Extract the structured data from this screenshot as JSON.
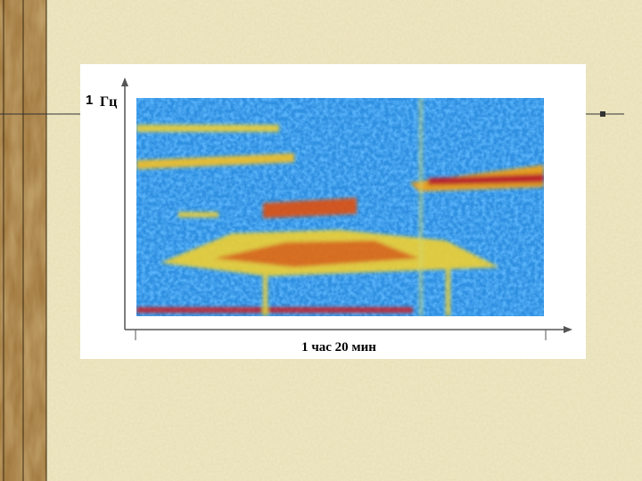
{
  "y_axis": {
    "max_label": "1",
    "unit": "Гц"
  },
  "x_axis": {
    "label": "1 час 20 мин"
  }
}
